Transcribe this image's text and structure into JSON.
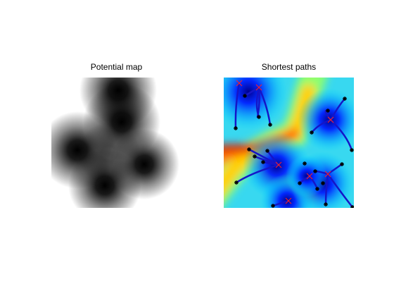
{
  "figure": {
    "panels": [
      {
        "id": "potential-map",
        "title": "Potential map",
        "colormap": "gray"
      },
      {
        "id": "shortest-paths",
        "title": "Shortest paths",
        "colormap": "jet",
        "legend": {
          "source_marker": "red-x",
          "start_marker": "black-star",
          "path_color": "#1515c8"
        }
      }
    ]
  }
}
